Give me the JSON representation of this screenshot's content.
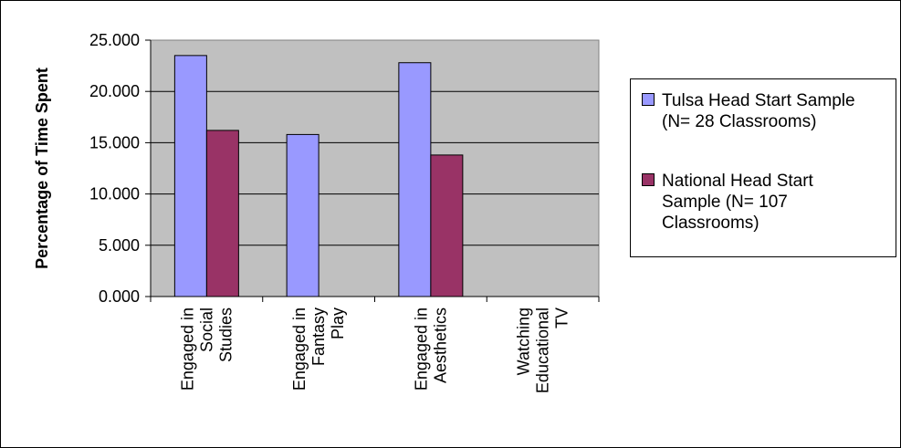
{
  "chart_data": {
    "type": "bar",
    "title": "",
    "ylabel": "Percentage of Time Spent",
    "xlabel": "",
    "ylim": [
      0,
      25
    ],
    "yticks": [
      "0.000",
      "5.000",
      "10.000",
      "15.000",
      "20.000",
      "25.000"
    ],
    "categories": [
      [
        "Engaged in",
        "Social",
        "Studies"
      ],
      [
        "Engaged in",
        "Fantasy",
        "Play"
      ],
      [
        "Engaged in",
        "Aesthetics"
      ],
      [
        "Watching",
        "Educational",
        "TV"
      ]
    ],
    "series": [
      {
        "name": "Tulsa Head Start Sample (N= 28 Classrooms)",
        "label_lines": [
          "Tulsa Head Start Sample",
          "(N= 28 Classrooms)"
        ],
        "color": "#9999ff",
        "values": [
          23.5,
          15.8,
          22.8,
          0
        ]
      },
      {
        "name": "National Head Start Sample (N= 107 Classrooms)",
        "label_lines": [
          "National Head Start",
          "Sample (N= 107",
          "Classrooms)"
        ],
        "color": "#993366",
        "values": [
          16.2,
          0,
          13.8,
          0
        ]
      }
    ],
    "grid": true,
    "plot_background": "#c0c0c0",
    "legend_position": "right"
  }
}
